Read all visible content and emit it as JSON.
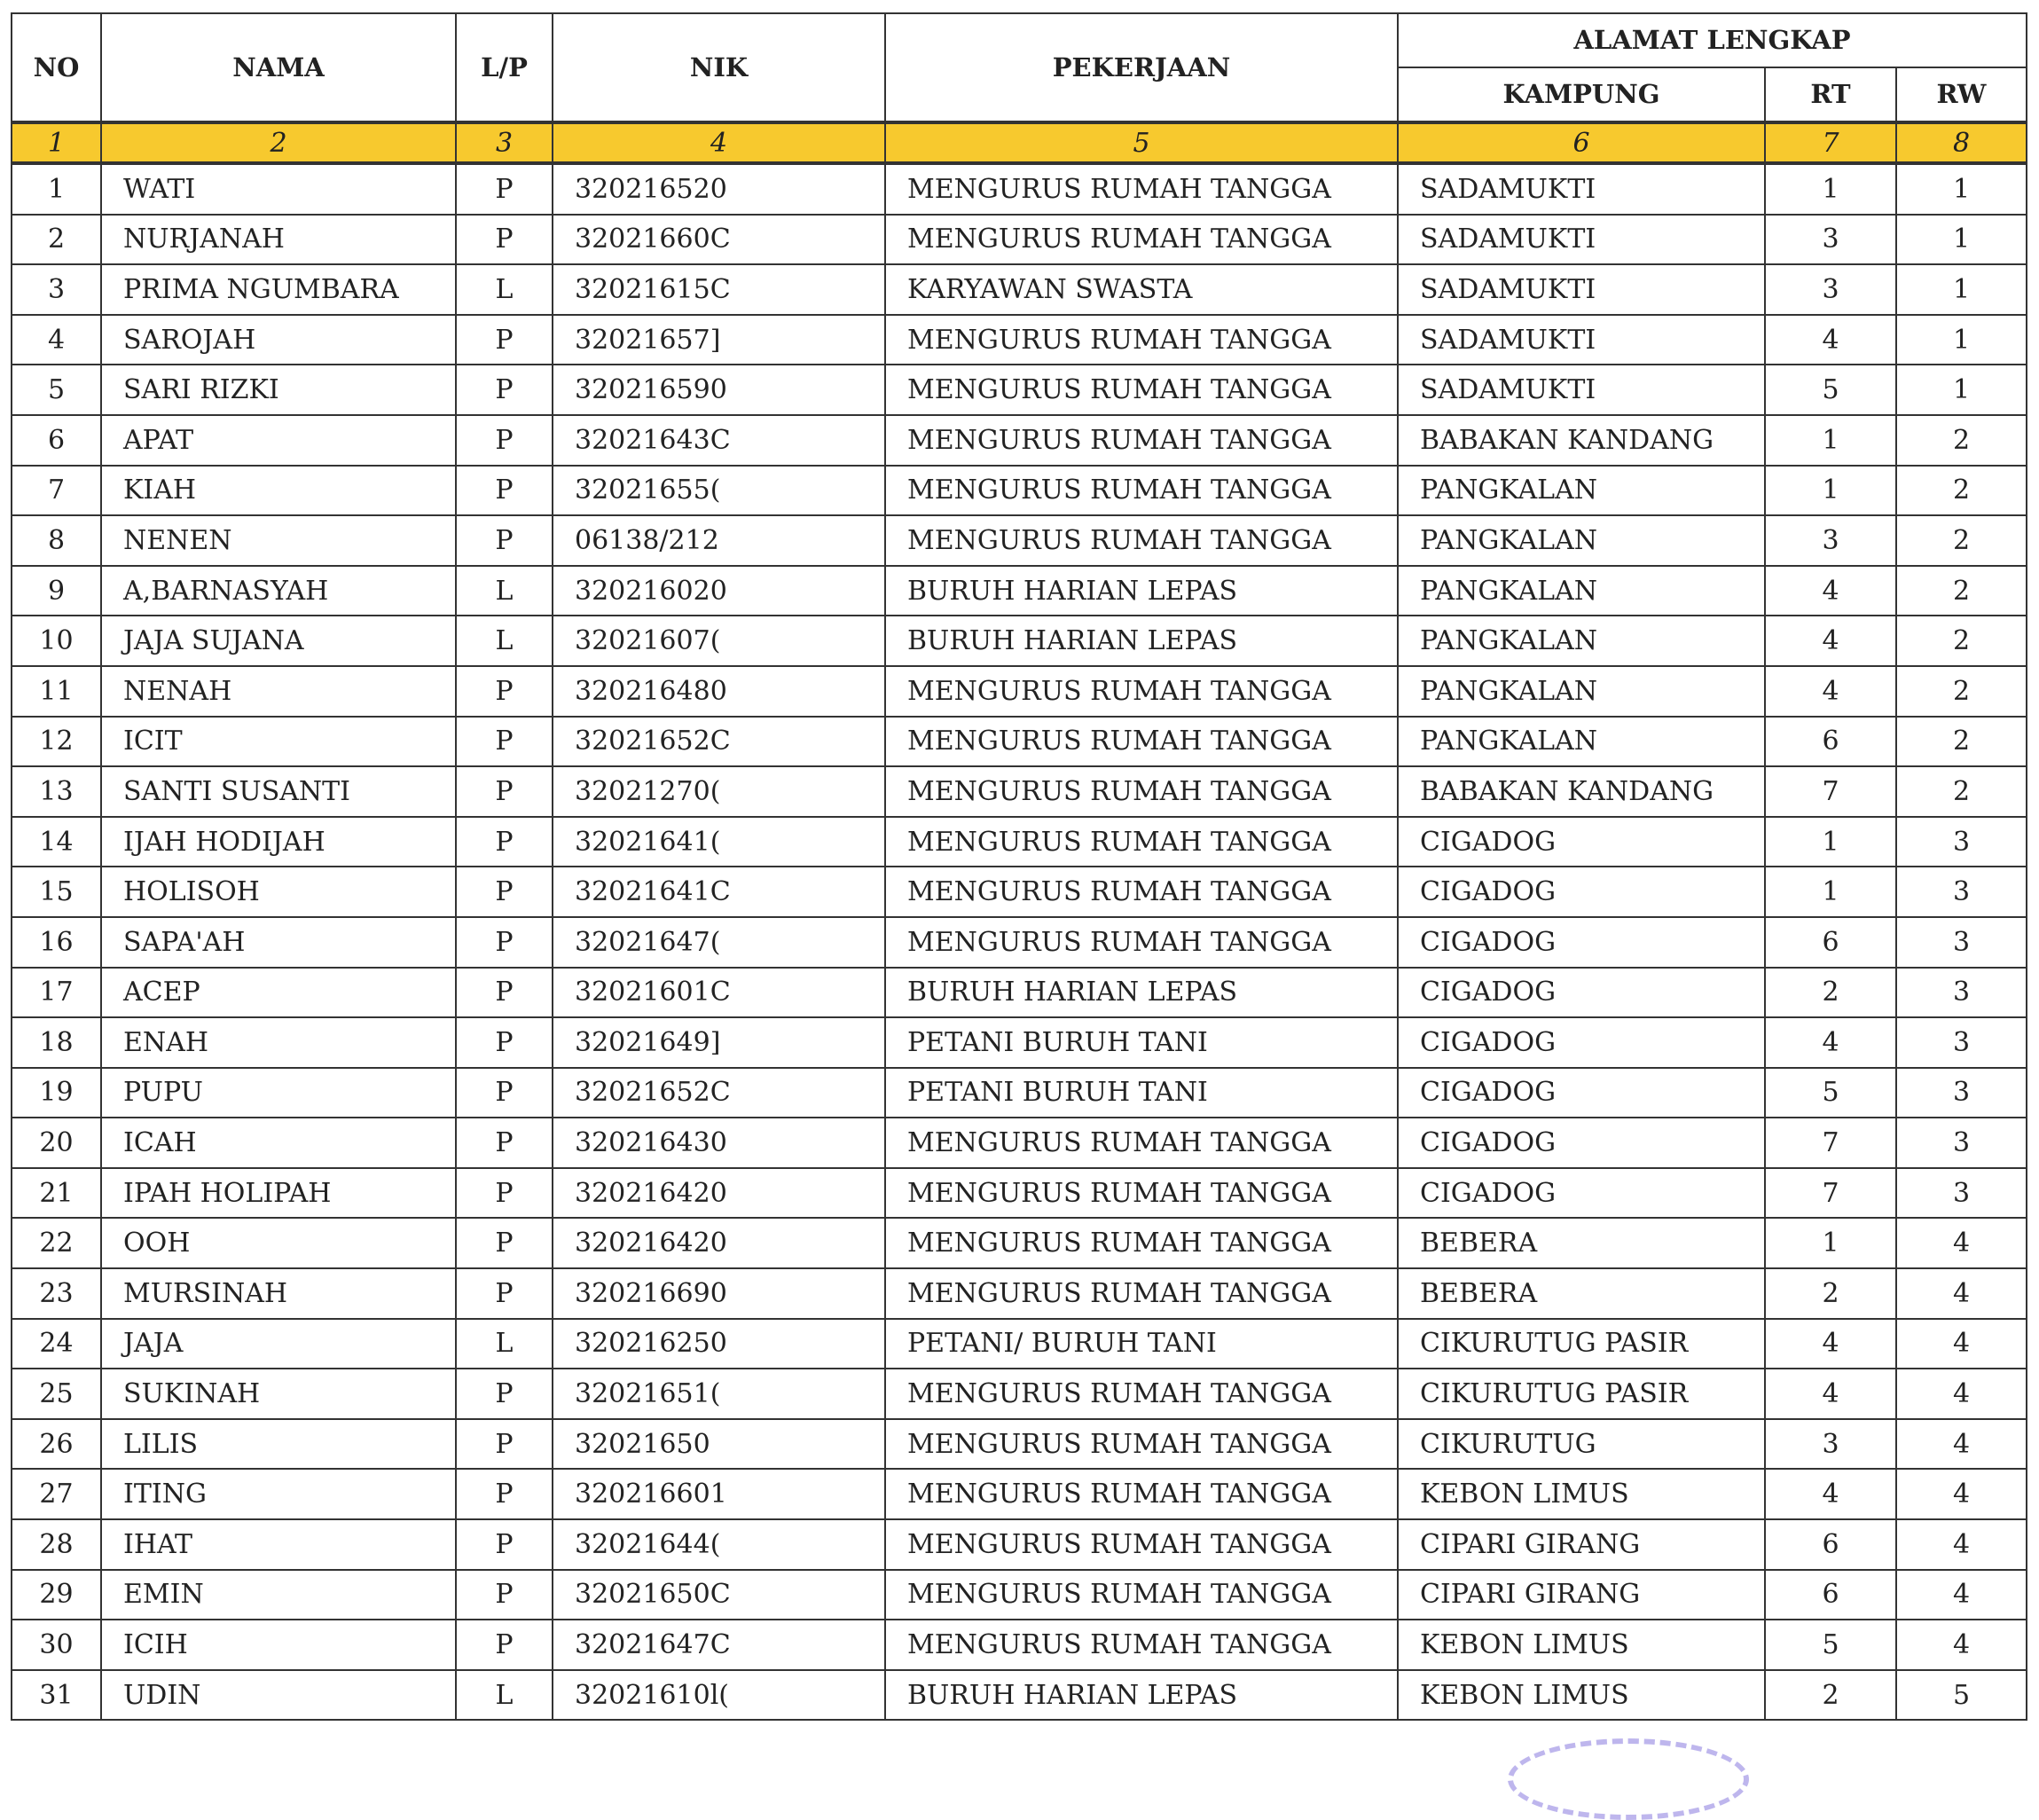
{
  "header": {
    "no": "NO",
    "nama": "NAMA",
    "lp": "L/P",
    "nik": "NIK",
    "pekerjaan": "PEKERJAAN",
    "alamat": "ALAMAT LENGKAP",
    "kampung": "KAMPUNG",
    "rt": "RT",
    "rw": "RW"
  },
  "column_numbers": [
    "1",
    "2",
    "3",
    "4",
    "5",
    "6",
    "7",
    "8"
  ],
  "colors": {
    "index_row": "#f7c92e",
    "stamp": "#8a7be0"
  },
  "rows": [
    [
      "1",
      "WATI",
      "P",
      "320216520",
      "MENGURUS RUMAH TANGGA",
      "SADAMUKTI",
      "1",
      "1"
    ],
    [
      "2",
      "NURJANAH",
      "P",
      "32021660C",
      "MENGURUS RUMAH TANGGA",
      "SADAMUKTI",
      "3",
      "1"
    ],
    [
      "3",
      "PRIMA NGUMBARA",
      "L",
      "32021615C",
      "KARYAWAN SWASTA",
      "SADAMUKTI",
      "3",
      "1"
    ],
    [
      "4",
      "SAROJAH",
      "P",
      "32021657]",
      "MENGURUS RUMAH TANGGA",
      "SADAMUKTI",
      "4",
      "1"
    ],
    [
      "5",
      "SARI RIZKI",
      "P",
      "320216590",
      "MENGURUS RUMAH TANGGA",
      "SADAMUKTI",
      "5",
      "1"
    ],
    [
      "6",
      "APAT",
      "P",
      "32021643C",
      "MENGURUS RUMAH TANGGA",
      "BABAKAN KANDANG",
      "1",
      "2"
    ],
    [
      "7",
      "KIAH",
      "P",
      "32021655(",
      "MENGURUS RUMAH TANGGA",
      "PANGKALAN",
      "1",
      "2"
    ],
    [
      "8",
      "NENEN",
      "P",
      "06138/212",
      "MENGURUS RUMAH TANGGA",
      "PANGKALAN",
      "3",
      "2"
    ],
    [
      "9",
      "A,BARNASYAH",
      "L",
      "320216020",
      "BURUH HARIAN LEPAS",
      "PANGKALAN",
      "4",
      "2"
    ],
    [
      "10",
      "JAJA SUJANA",
      "L",
      "32021607(",
      "BURUH HARIAN LEPAS",
      "PANGKALAN",
      "4",
      "2"
    ],
    [
      "11",
      "NENAH",
      "P",
      "320216480",
      "MENGURUS RUMAH TANGGA",
      "PANGKALAN",
      "4",
      "2"
    ],
    [
      "12",
      "ICIT",
      "P",
      "32021652C",
      "MENGURUS RUMAH TANGGA",
      "PANGKALAN",
      "6",
      "2"
    ],
    [
      "13",
      "SANTI SUSANTI",
      "P",
      "32021270(",
      "MENGURUS RUMAH TANGGA",
      "BABAKAN KANDANG",
      "7",
      "2"
    ],
    [
      "14",
      "IJAH HODIJAH",
      "P",
      "32021641(",
      "MENGURUS RUMAH TANGGA",
      "CIGADOG",
      "1",
      "3"
    ],
    [
      "15",
      "HOLISOH",
      "P",
      "32021641C",
      "MENGURUS RUMAH TANGGA",
      "CIGADOG",
      "1",
      "3"
    ],
    [
      "16",
      "SAPA'AH",
      "P",
      "32021647(",
      "MENGURUS RUMAH TANGGA",
      "CIGADOG",
      "6",
      "3"
    ],
    [
      "17",
      "ACEP",
      "P",
      "32021601C",
      "BURUH HARIAN LEPAS",
      "CIGADOG",
      "2",
      "3"
    ],
    [
      "18",
      "ENAH",
      "P",
      "32021649]",
      "PETANI BURUH TANI",
      "CIGADOG",
      "4",
      "3"
    ],
    [
      "19",
      "PUPU",
      "P",
      "32021652C",
      "PETANI BURUH TANI",
      "CIGADOG",
      "5",
      "3"
    ],
    [
      "20",
      "ICAH",
      "P",
      "320216430",
      "MENGURUS RUMAH TANGGA",
      "CIGADOG",
      "7",
      "3"
    ],
    [
      "21",
      "IPAH HOLIPAH",
      "P",
      "320216420",
      "MENGURUS RUMAH TANGGA",
      "CIGADOG",
      "7",
      "3"
    ],
    [
      "22",
      "OOH",
      "P",
      "320216420",
      "MENGURUS RUMAH TANGGA",
      "BEBERA",
      "1",
      "4"
    ],
    [
      "23",
      "MURSINAH",
      "P",
      "320216690",
      "MENGURUS RUMAH TANGGA",
      "BEBERA",
      "2",
      "4"
    ],
    [
      "24",
      "JAJA",
      "L",
      "320216250",
      "PETANI/ BURUH TANI",
      "CIKURUTUG PASIR",
      "4",
      "4"
    ],
    [
      "25",
      "SUKINAH",
      "P",
      "32021651(",
      "MENGURUS RUMAH TANGGA",
      "CIKURUTUG PASIR",
      "4",
      "4"
    ],
    [
      "26",
      "LILIS",
      "P",
      "32021650",
      "MENGURUS RUMAH TANGGA",
      "CIKURUTUG",
      "3",
      "4"
    ],
    [
      "27",
      "ITING",
      "P",
      "320216601",
      "MENGURUS RUMAH TANGGA",
      "KEBON LIMUS",
      "4",
      "4"
    ],
    [
      "28",
      "IHAT",
      "P",
      "32021644(",
      "MENGURUS RUMAH TANGGA",
      "CIPARI GIRANG",
      "6",
      "4"
    ],
    [
      "29",
      "EMIN",
      "P",
      "32021650C",
      "MENGURUS RUMAH TANGGA",
      "CIPARI GIRANG",
      "6",
      "4"
    ],
    [
      "30",
      "ICIH",
      "P",
      "32021647C",
      "MENGURUS RUMAH TANGGA",
      "KEBON LIMUS",
      "5",
      "4"
    ],
    [
      "31",
      "UDIN",
      "L",
      "32021610l(",
      "BURUH HARIAN LEPAS",
      "KEBON LIMUS",
      "2",
      "5"
    ]
  ]
}
